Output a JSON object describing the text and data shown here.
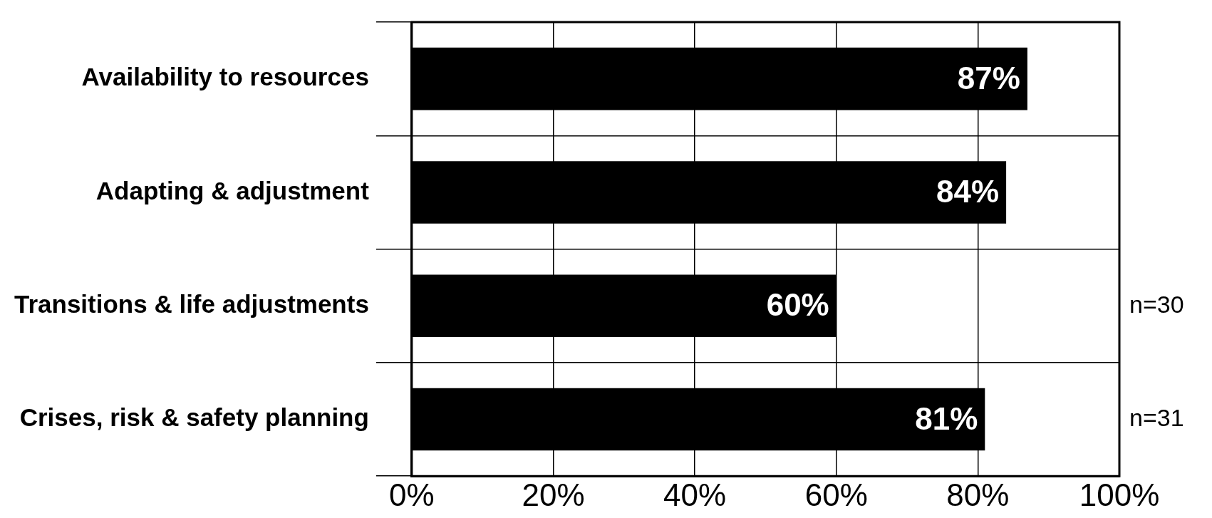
{
  "chart_data": {
    "type": "bar",
    "orientation": "horizontal",
    "categories": [
      "Availability to resources",
      "Adapting & adjustment",
      "Transitions & life adjustments",
      "Crises, risk & safety planning"
    ],
    "values": [
      87,
      84,
      60,
      81
    ],
    "color": "#000000",
    "value_labels": [
      "87%",
      "84%",
      "60%",
      "81%"
    ],
    "xlim": [
      0,
      100
    ],
    "xticks": [
      {
        "value": 0,
        "label": "0%"
      },
      {
        "value": 20,
        "label": "20%"
      },
      {
        "value": 40,
        "label": "40%"
      },
      {
        "value": 60,
        "label": "60%"
      },
      {
        "value": 80,
        "label": "80%"
      },
      {
        "value": 100,
        "label": "100%"
      }
    ],
    "grid": true,
    "legend": false,
    "annotations": [
      "n=30",
      "n=31"
    ]
  }
}
